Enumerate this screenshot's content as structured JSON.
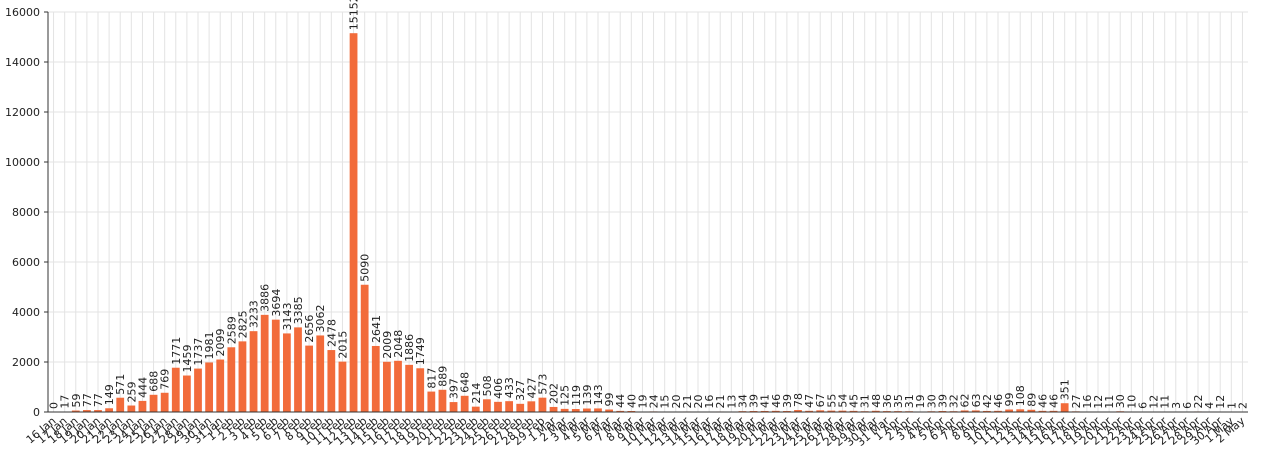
{
  "chart_data": {
    "type": "bar",
    "color": "#f26b3a",
    "grid": true,
    "ylim": [
      0,
      16000
    ],
    "yticks": [
      0,
      2000,
      4000,
      6000,
      8000,
      10000,
      12000,
      14000,
      16000
    ],
    "categories": [
      "16 Jan",
      "17 Jan",
      "18 Jan",
      "19 Jan",
      "20 Jan",
      "21 Jan",
      "22 Jan",
      "23 Jan",
      "24 Jan",
      "25 Jan",
      "26 Jan",
      "27 Jan",
      "28 Jan",
      "29 Jan",
      "30 Jan",
      "31 Jan",
      "1 Feb",
      "2 Feb",
      "3 Feb",
      "4 Feb",
      "5 Feb",
      "6 Feb",
      "7 Feb",
      "8 Feb",
      "9 Feb",
      "10 Feb",
      "11 Feb",
      "12 Feb",
      "13 Feb",
      "14 Feb",
      "15 Feb",
      "16 Feb",
      "17 Feb",
      "18 Feb",
      "19 Feb",
      "20 Feb",
      "21 Feb",
      "22 Feb",
      "23 Feb",
      "24 Feb",
      "25 Feb",
      "26 Feb",
      "27 Feb",
      "28 Feb",
      "29 Feb",
      "1 Mar",
      "2 Mar",
      "3 Mar",
      "4 Mar",
      "5 Mar",
      "6 Mar",
      "7 Mar",
      "8 Mar",
      "9 Mar",
      "10 Mar",
      "11 Mar",
      "12 Mar",
      "13 Mar",
      "14 Mar",
      "15 Mar",
      "16 Mar",
      "17 Mar",
      "18 Mar",
      "19 Mar",
      "20 Mar",
      "21 Mar",
      "22 Mar",
      "23 Mar",
      "24 Mar",
      "25 Mar",
      "26 Mar",
      "27 Mar",
      "28 Mar",
      "29 Mar",
      "30 Mar",
      "31 Mar",
      "1 Apr",
      "2 Apr",
      "3 Apr",
      "4 Apr",
      "5 Apr",
      "6 Apr",
      "7 Apr",
      "8 Apr",
      "9 Apr",
      "10 Apr",
      "11 Apr",
      "12 Apr",
      "13 Apr",
      "14 Apr",
      "15 Apr",
      "16 Apr",
      "17 Apr",
      "18 Apr",
      "19 Apr",
      "20 Apr",
      "21 Apr",
      "22 Apr",
      "23 Apr",
      "24 Apr",
      "25 Apr",
      "26 Apr",
      "27 Apr",
      "28 Apr",
      "29 Apr",
      "30 Apr",
      "1 May",
      "2 May"
    ],
    "values": [
      0,
      17,
      59,
      77,
      77,
      149,
      571,
      259,
      444,
      688,
      769,
      1771,
      1459,
      1737,
      1981,
      2099,
      2589,
      2825,
      3233,
      3886,
      3694,
      3143,
      3385,
      2656,
      3062,
      2478,
      2015,
      15152,
      5090,
      2641,
      2009,
      2048,
      1886,
      1749,
      817,
      889,
      397,
      648,
      214,
      508,
      406,
      433,
      327,
      427,
      573,
      202,
      125,
      119,
      139,
      143,
      99,
      44,
      40,
      19,
      24,
      15,
      20,
      21,
      20,
      16,
      21,
      13,
      34,
      39,
      41,
      46,
      39,
      78,
      47,
      67,
      55,
      54,
      45,
      31,
      48,
      36,
      35,
      31,
      19,
      30,
      39,
      32,
      62,
      63,
      42,
      46,
      99,
      108,
      89,
      46,
      46,
      351,
      27,
      16,
      12,
      11,
      30,
      10,
      6,
      12,
      11,
      3,
      6,
      22,
      4,
      12,
      1,
      2
    ]
  }
}
